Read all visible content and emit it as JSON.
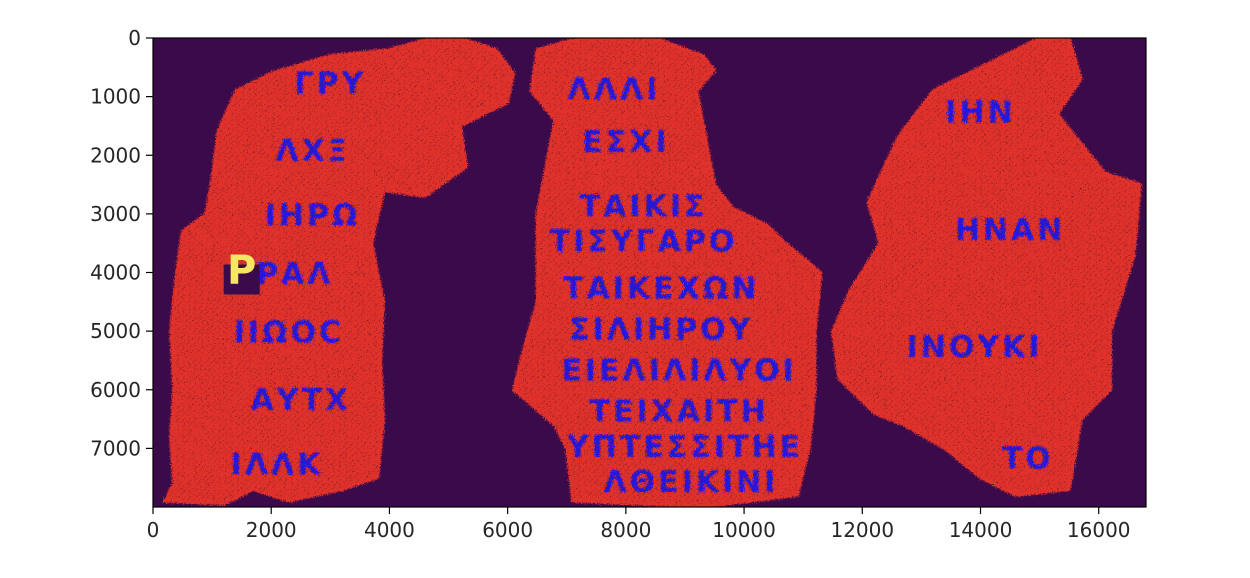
{
  "chart_data": {
    "type": "heatmap",
    "title": "",
    "xlabel": "",
    "ylabel": "",
    "xlim": [
      0,
      16800
    ],
    "ylim": [
      8000,
      0
    ],
    "x_ticks": [
      0,
      2000,
      4000,
      6000,
      8000,
      10000,
      12000,
      14000,
      16000
    ],
    "y_ticks": [
      0,
      1000,
      2000,
      3000,
      4000,
      5000,
      6000,
      7000
    ],
    "x_tick_labels": [
      "0",
      "2000",
      "4000",
      "6000",
      "8000",
      "10000",
      "12000",
      "14000",
      "16000"
    ],
    "y_tick_labels": [
      "0",
      "1000",
      "2000",
      "3000",
      "4000",
      "5000",
      "6000",
      "7000"
    ],
    "colormap": "viridis-like categorical",
    "classes": [
      {
        "name": "background",
        "color": "#3b0a4a"
      },
      {
        "name": "papyrus",
        "color": "#e0332a"
      },
      {
        "name": "ink",
        "color": "#1414e6"
      },
      {
        "name": "highlight",
        "color": "#f5e663"
      }
    ],
    "fragments": [
      {
        "name": "left-fragment",
        "outline": [
          [
            200,
            7900
          ],
          [
            350,
            7600
          ],
          [
            300,
            6800
          ],
          [
            350,
            6000
          ],
          [
            300,
            5000
          ],
          [
            400,
            4000
          ],
          [
            500,
            3300
          ],
          [
            900,
            3000
          ],
          [
            1000,
            2400
          ],
          [
            1100,
            1600
          ],
          [
            1400,
            900
          ],
          [
            2000,
            600
          ],
          [
            3000,
            300
          ],
          [
            4000,
            200
          ],
          [
            4700,
            0
          ],
          [
            5200,
            0
          ],
          [
            5800,
            200
          ],
          [
            6100,
            600
          ],
          [
            6000,
            1100
          ],
          [
            5200,
            1500
          ],
          [
            5300,
            2200
          ],
          [
            4600,
            2700
          ],
          [
            3900,
            2600
          ],
          [
            3700,
            3500
          ],
          [
            3900,
            4500
          ],
          [
            3850,
            5500
          ],
          [
            3900,
            6500
          ],
          [
            3800,
            7500
          ],
          [
            3200,
            7700
          ],
          [
            2300,
            7900
          ],
          [
            1700,
            7700
          ],
          [
            1200,
            7950
          ]
        ],
        "ink_strokes": [
          {
            "text": "ΓΡΥ",
            "x": 3000,
            "y": 800
          },
          {
            "text": "ΛΧΞ",
            "x": 2700,
            "y": 1950
          },
          {
            "text": "ΙΗΡΩ",
            "x": 2700,
            "y": 3050
          },
          {
            "text": "ΡΑΛ",
            "x": 2400,
            "y": 4050
          },
          {
            "text": "ΙΙΩΟϹ",
            "x": 2300,
            "y": 5050
          },
          {
            "text": "ΑΥΤΧ",
            "x": 2500,
            "y": 6200
          },
          {
            "text": "ΙΛΛΚ",
            "x": 2100,
            "y": 7300
          }
        ],
        "highlight": {
          "text": "P",
          "x": 1500,
          "y": 4000
        }
      },
      {
        "name": "middle-fragment",
        "outline": [
          [
            6500,
            200
          ],
          [
            7200,
            0
          ],
          [
            8500,
            0
          ],
          [
            9300,
            300
          ],
          [
            9500,
            550
          ],
          [
            9200,
            900
          ],
          [
            9500,
            2500
          ],
          [
            9800,
            2900
          ],
          [
            10400,
            3200
          ],
          [
            10700,
            3500
          ],
          [
            11300,
            4000
          ],
          [
            11200,
            5000
          ],
          [
            11200,
            6000
          ],
          [
            11100,
            7000
          ],
          [
            10900,
            7800
          ],
          [
            9300,
            8000
          ],
          [
            7100,
            7900
          ],
          [
            7000,
            7000
          ],
          [
            6800,
            6600
          ],
          [
            6100,
            6000
          ],
          [
            6300,
            5200
          ],
          [
            6500,
            4500
          ],
          [
            6500,
            3000
          ],
          [
            6800,
            1400
          ],
          [
            6400,
            900
          ]
        ],
        "ink_strokes": [
          {
            "text": "ΛΛΛΙ",
            "x": 7800,
            "y": 900
          },
          {
            "text": "ΕΣΧΙ",
            "x": 8000,
            "y": 1800
          },
          {
            "text": "ΤΑΙΚΙΣ",
            "x": 8300,
            "y": 2900
          },
          {
            "text": "ΤΙΣΥΓΑΡΟ",
            "x": 8300,
            "y": 3500
          },
          {
            "text": "ΤΑΙΚΕΧΩΝ",
            "x": 8600,
            "y": 4300
          },
          {
            "text": "ΣΙΛΙΗΡΟΥ",
            "x": 8600,
            "y": 5000
          },
          {
            "text": "ΕΙΕΛΙΛΙΛΥΟΙ",
            "x": 8900,
            "y": 5700
          },
          {
            "text": "ΤΕΙΧΑΙΤΗ",
            "x": 8900,
            "y": 6400
          },
          {
            "text": "ΥΠΤΕΣΣΙΤΗΕ",
            "x": 9000,
            "y": 7000
          },
          {
            "text": "ΛΘΕΙΚΙΝΙ",
            "x": 9100,
            "y": 7600
          }
        ],
        "highlight": null
      },
      {
        "name": "right-fragment",
        "outline": [
          [
            11800,
            4300
          ],
          [
            12300,
            3500
          ],
          [
            12100,
            2800
          ],
          [
            12600,
            1700
          ],
          [
            13200,
            900
          ],
          [
            14000,
            500
          ],
          [
            15000,
            0
          ],
          [
            15500,
            0
          ],
          [
            15700,
            700
          ],
          [
            15300,
            1300
          ],
          [
            16100,
            2300
          ],
          [
            16700,
            2500
          ],
          [
            16600,
            3700
          ],
          [
            16200,
            5000
          ],
          [
            16200,
            6000
          ],
          [
            15700,
            6500
          ],
          [
            15500,
            7700
          ],
          [
            14600,
            7800
          ],
          [
            14000,
            7500
          ],
          [
            13400,
            7000
          ],
          [
            12700,
            6600
          ],
          [
            12200,
            6400
          ],
          [
            11600,
            5800
          ],
          [
            11500,
            5000
          ]
        ],
        "ink_strokes": [
          {
            "text": "ΙΗΝ",
            "x": 14000,
            "y": 1300
          },
          {
            "text": "ΗΝΑΝ",
            "x": 14500,
            "y": 3300
          },
          {
            "text": "ΙΝΟΥΚΙ",
            "x": 13900,
            "y": 5300
          },
          {
            "text": "ΤΟ",
            "x": 14800,
            "y": 7200
          }
        ],
        "highlight": null
      }
    ]
  }
}
